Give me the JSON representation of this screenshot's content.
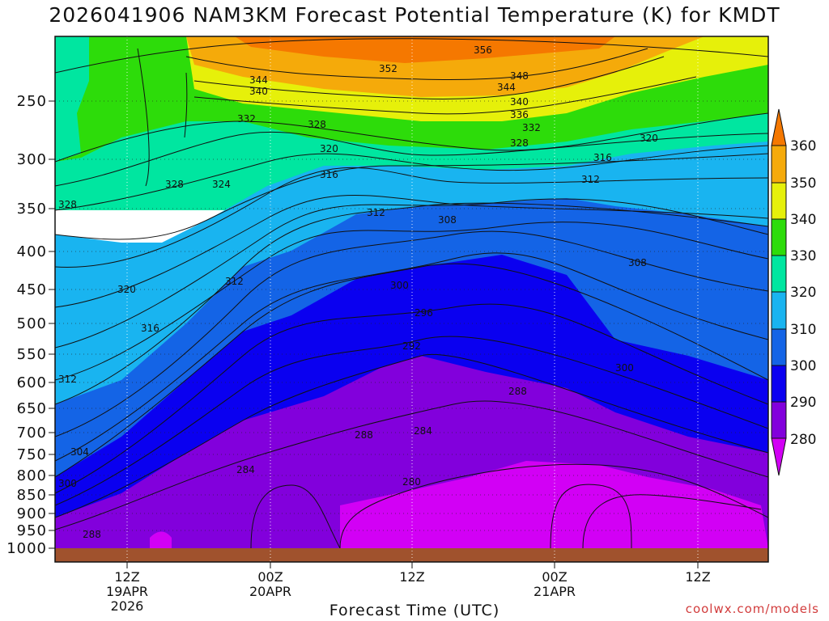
{
  "header": {
    "title": "2026041906 NAM3KM Forecast Potential Temperature (K) for KMDT"
  },
  "credit": "coolwx.com/models",
  "chart_data": {
    "type": "heatmap",
    "title": "2026041906 NAM3KM Forecast Potential Temperature (K) for KMDT",
    "xlabel": "Forecast Time (UTC)",
    "ylabel": "",
    "variable": "Potential Temperature (K)",
    "station": "KMDT",
    "model": "NAM3KM",
    "init": "2026041906",
    "y_axis": {
      "scale": "log-pressure",
      "units": "hPa",
      "range": [
        1000,
        200
      ],
      "ticks": [
        250,
        300,
        350,
        400,
        450,
        500,
        550,
        600,
        650,
        700,
        750,
        800,
        850,
        900,
        950,
        1000
      ]
    },
    "x_axis": {
      "range_hours": [
        0,
        60
      ],
      "ticks": [
        {
          "hour": 6,
          "label": "12Z",
          "date": "19APR",
          "year": "2026"
        },
        {
          "hour": 18,
          "label": "00Z",
          "date": "20APR",
          "year": ""
        },
        {
          "hour": 30,
          "label": "12Z",
          "date": "",
          "year": ""
        },
        {
          "hour": 42,
          "label": "00Z",
          "date": "21APR",
          "year": ""
        },
        {
          "hour": 54,
          "label": "12Z",
          "date": "",
          "year": ""
        }
      ]
    },
    "colorbar": {
      "levels": [
        280,
        290,
        300,
        310,
        320,
        330,
        340,
        350,
        360
      ],
      "labels": [
        "280",
        "290",
        "300",
        "310",
        "320",
        "330",
        "340",
        "350",
        "360"
      ],
      "colors": [
        "#d200f5",
        "#8200dc",
        "#0a00f0",
        "#1464e6",
        "#19b4f0",
        "#00e6a0",
        "#2ddc0a",
        "#e6f00a",
        "#f5aa0a",
        "#f57800"
      ]
    },
    "sample_columns": [
      {
        "hour": 0,
        "levels_hPa": [
          300,
          350,
          450,
          600,
          750,
          850,
          950
        ],
        "theta": [
          332,
          328,
          320,
          312,
          304,
          300,
          288
        ]
      },
      {
        "hour": 16,
        "levels_hPa": [
          300,
          450,
          550,
          700,
          800,
          900
        ],
        "theta": [
          320,
          312,
          300,
          290,
          284,
          282
        ]
      },
      {
        "hour": 30,
        "levels_hPa": [
          250,
          350,
          450,
          550,
          700,
          850
        ],
        "theta": [
          340,
          308,
          298,
          292,
          284,
          280
        ]
      },
      {
        "hour": 42,
        "levels_hPa": [
          250,
          350,
          450,
          600,
          750,
          900
        ],
        "theta": [
          340,
          310,
          300,
          288,
          282,
          278
        ]
      },
      {
        "hour": 58,
        "levels_hPa": [
          300,
          400,
          550,
          700,
          850,
          950
        ],
        "theta": [
          320,
          308,
          300,
          294,
          288,
          284
        ]
      }
    ],
    "contour_labels": [
      "356",
      "352",
      "348",
      "344",
      "344",
      "340",
      "340",
      "336",
      "332",
      "332",
      "328",
      "328",
      "320",
      "320",
      "316",
      "316",
      "312",
      "312",
      "308",
      "308",
      "328",
      "324",
      "328",
      "320",
      "316",
      "312",
      "312",
      "300",
      "296",
      "292",
      "288",
      "300",
      "288",
      "284",
      "284",
      "280",
      "304",
      "300",
      "288"
    ]
  }
}
